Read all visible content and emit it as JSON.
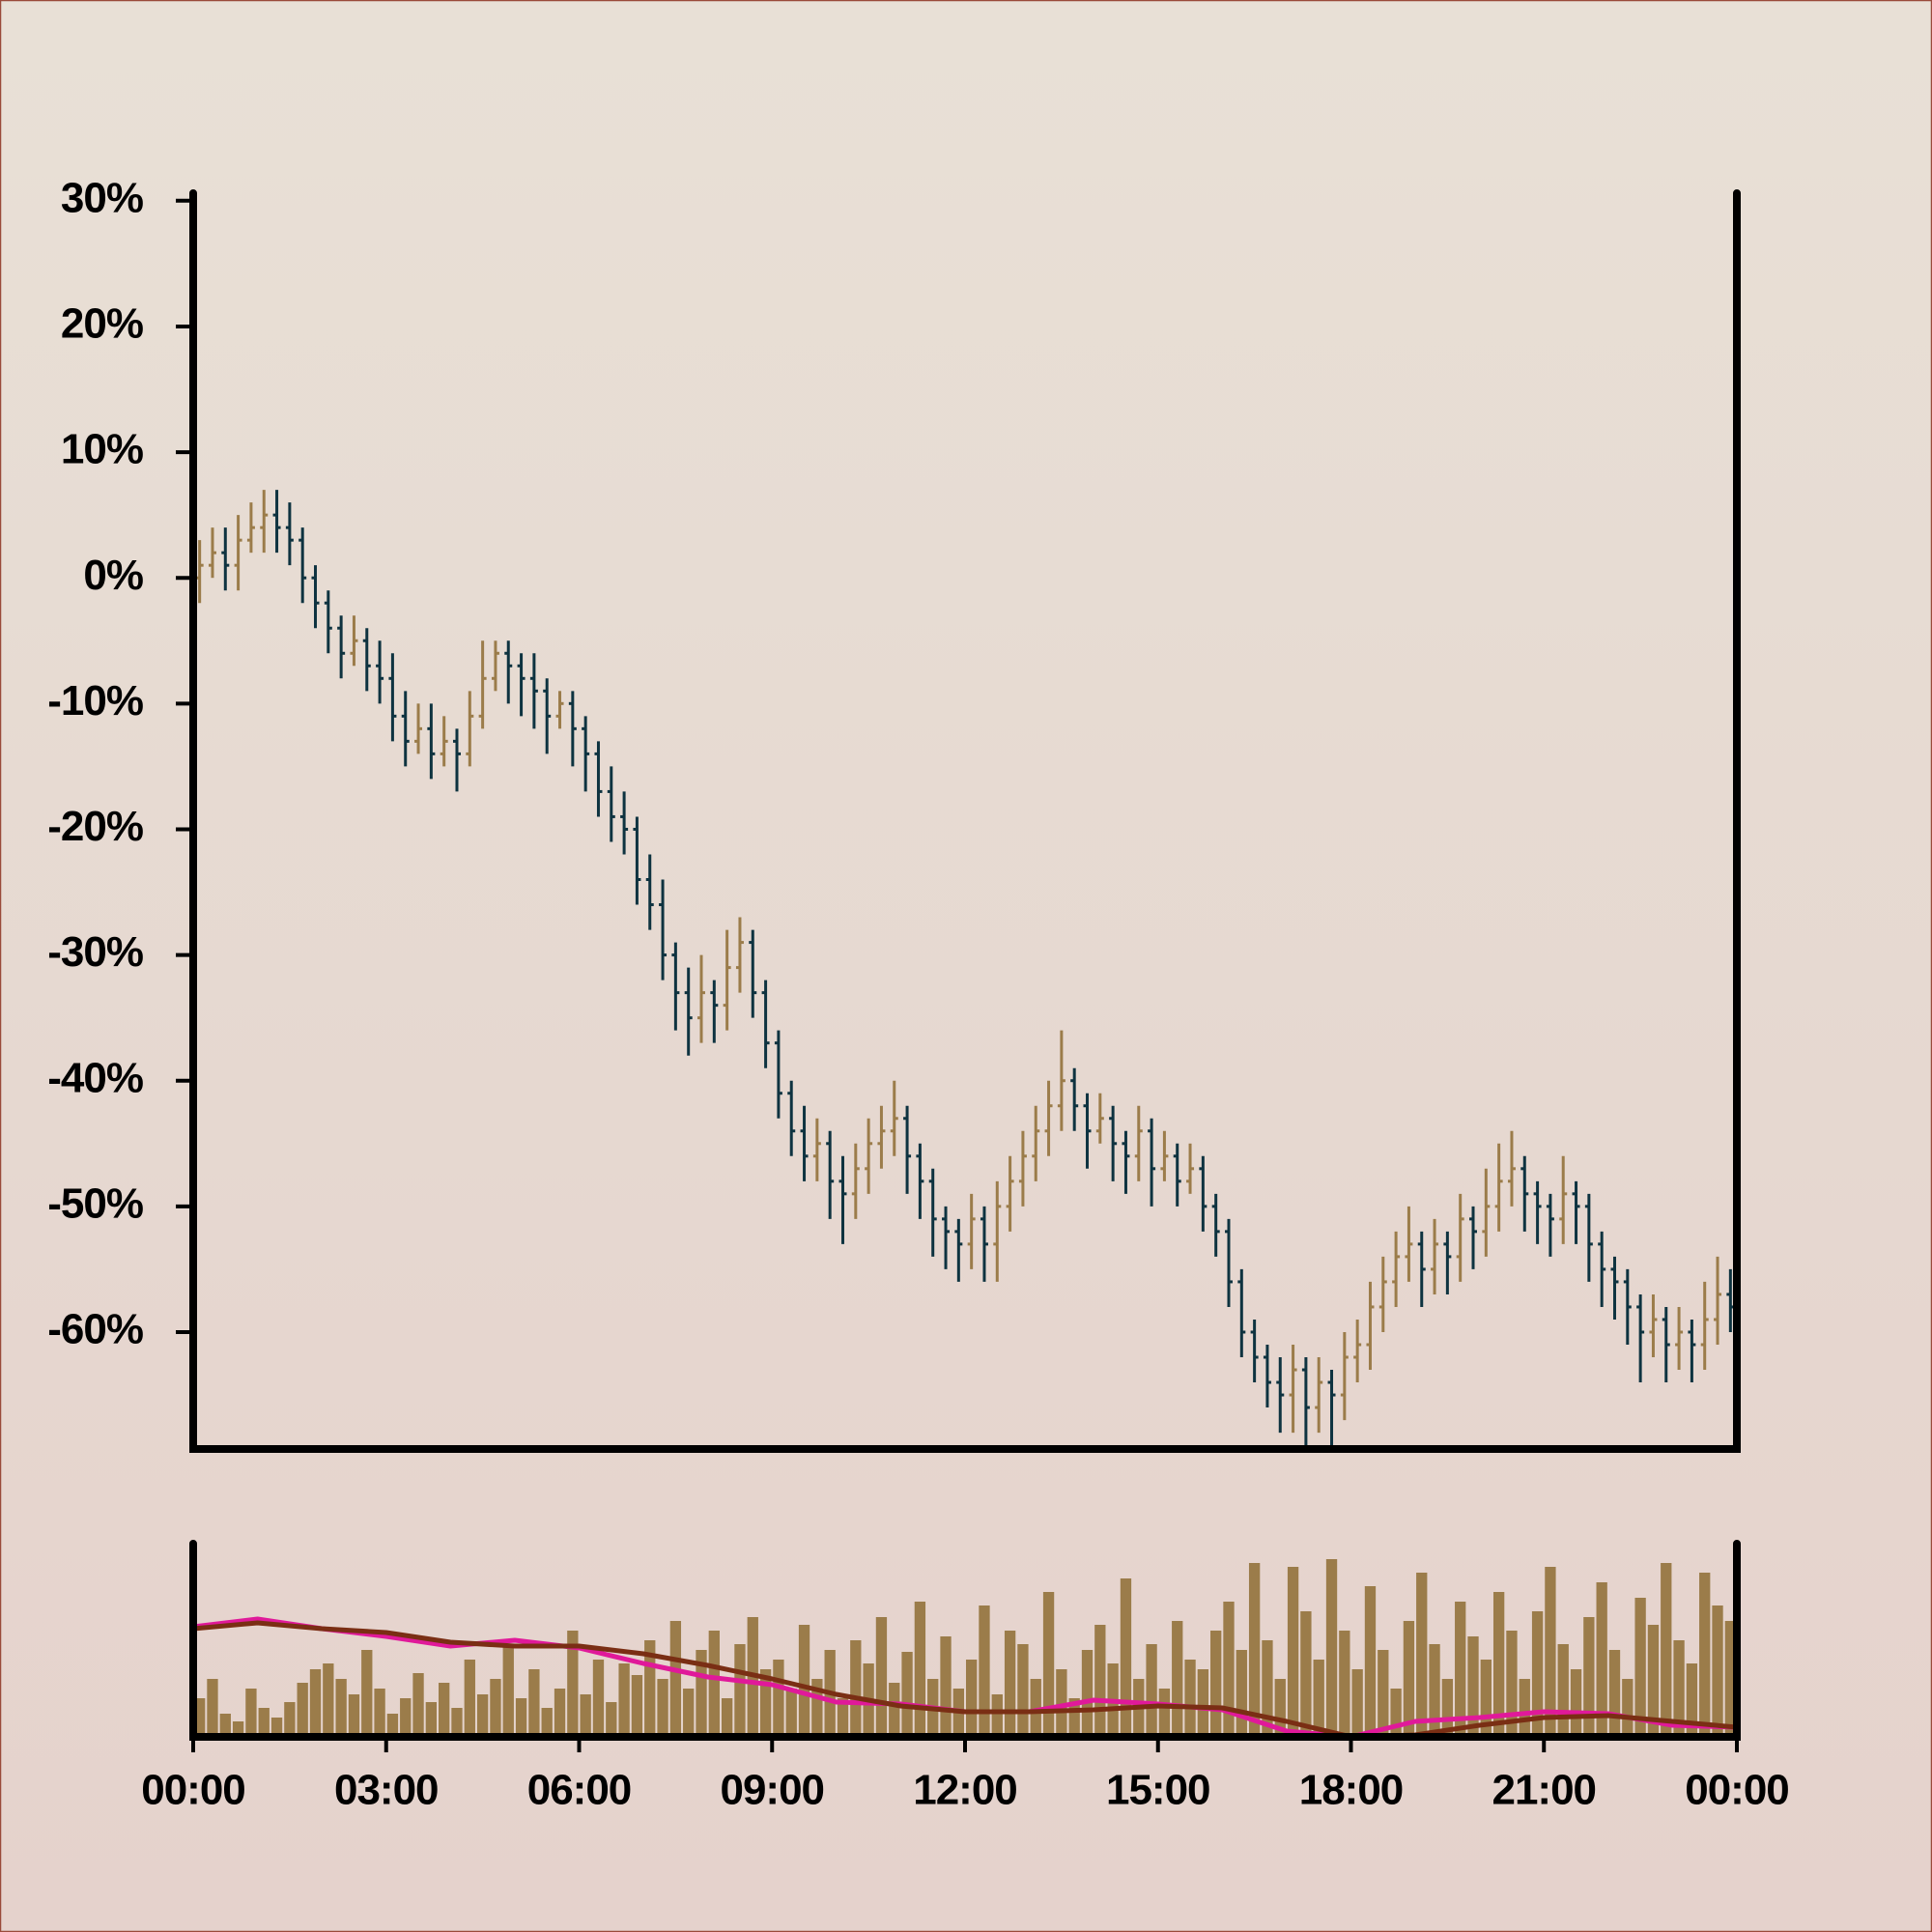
{
  "chart_data": {
    "type": "ohlc",
    "x": [
      0,
      0.2,
      0.4,
      0.6,
      0.8,
      1,
      1.2,
      1.4,
      1.6,
      1.8,
      2,
      2.2,
      2.4,
      2.6,
      2.8,
      3,
      3.2,
      3.4,
      3.6,
      3.8,
      4,
      4.2,
      4.4,
      4.6,
      4.8,
      5,
      5.2,
      5.4,
      5.6,
      5.8,
      6,
      6.2,
      6.4,
      6.6,
      6.8,
      7,
      7.2,
      7.4,
      7.6,
      7.8,
      8,
      8.2,
      8.4,
      8.6,
      8.8,
      9,
      9.2,
      9.4,
      9.6,
      9.8,
      10,
      10.2,
      10.4,
      10.6,
      10.8,
      11,
      11.2,
      11.4,
      11.6,
      11.8,
      12,
      12.2,
      12.4,
      12.6,
      12.8,
      13,
      13.2,
      13.4,
      13.6,
      13.8,
      14,
      14.2,
      14.4,
      14.6,
      14.8,
      15,
      15.2,
      15.4,
      15.6,
      15.8,
      16,
      16.2,
      16.4,
      16.6,
      16.8,
      17,
      17.2,
      17.4,
      17.6,
      17.8,
      18,
      18.2,
      18.4,
      18.6,
      18.8,
      19,
      19.2,
      19.4,
      19.6,
      19.8,
      20,
      20.2,
      20.4,
      20.6,
      20.8,
      21,
      21.2,
      21.4,
      21.6,
      21.8,
      22,
      22.2,
      22.4,
      22.6,
      22.8,
      23,
      23.2,
      23.4,
      23.6,
      23.8
    ],
    "xlim": [
      0,
      24
    ],
    "xticks": [
      {
        "value": 0,
        "label": "00:00"
      },
      {
        "value": 3,
        "label": "03:00"
      },
      {
        "value": 6,
        "label": "06:00"
      },
      {
        "value": 9,
        "label": "09:00"
      },
      {
        "value": 12,
        "label": "12:00"
      },
      {
        "value": 15,
        "label": "15:00"
      },
      {
        "value": 18,
        "label": "18:00"
      },
      {
        "value": 21,
        "label": "21:00"
      },
      {
        "value": 24,
        "label": "00:00"
      }
    ],
    "ylim": [
      -69.3,
      30.6
    ],
    "yticks": [
      {
        "value": 30,
        "label": "30%"
      },
      {
        "value": 20,
        "label": "20%"
      },
      {
        "value": 10,
        "label": "10%"
      },
      {
        "value": 0,
        "label": "0%"
      },
      {
        "value": -10,
        "label": "-10%"
      },
      {
        "value": -20,
        "label": "-20%"
      },
      {
        "value": -30,
        "label": "-30%"
      },
      {
        "value": -40,
        "label": "-40%"
      },
      {
        "value": -50,
        "label": "-50%"
      },
      {
        "value": -60,
        "label": "-60%"
      }
    ],
    "ohlc": [
      [
        0,
        3,
        -2,
        1
      ],
      [
        1,
        4,
        0,
        2
      ],
      [
        2,
        4,
        -1,
        1
      ],
      [
        1,
        5,
        -1,
        3
      ],
      [
        3,
        6,
        2,
        4
      ],
      [
        4,
        7,
        2,
        5
      ],
      [
        5,
        7,
        2,
        4
      ],
      [
        4,
        6,
        1,
        3
      ],
      [
        3,
        4,
        -2,
        0
      ],
      [
        0,
        1,
        -4,
        -2
      ],
      [
        -2,
        -1,
        -6,
        -4
      ],
      [
        -4,
        -3,
        -8,
        -6
      ],
      [
        -6,
        -3,
        -7,
        -5
      ],
      [
        -5,
        -4,
        -9,
        -7
      ],
      [
        -7,
        -5,
        -10,
        -8
      ],
      [
        -8,
        -6,
        -13,
        -11
      ],
      [
        -11,
        -9,
        -15,
        -13
      ],
      [
        -13,
        -10,
        -14,
        -12
      ],
      [
        -12,
        -10,
        -16,
        -14
      ],
      [
        -14,
        -11,
        -15,
        -13
      ],
      [
        -13,
        -12,
        -17,
        -14
      ],
      [
        -14,
        -9,
        -15,
        -11
      ],
      [
        -11,
        -5,
        -12,
        -8
      ],
      [
        -8,
        -5,
        -9,
        -6
      ],
      [
        -6,
        -5,
        -10,
        -7
      ],
      [
        -7,
        -6,
        -11,
        -8
      ],
      [
        -8,
        -6,
        -12,
        -9
      ],
      [
        -9,
        -8,
        -14,
        -11
      ],
      [
        -11,
        -9,
        -12,
        -10
      ],
      [
        -10,
        -9,
        -15,
        -12
      ],
      [
        -12,
        -11,
        -17,
        -14
      ],
      [
        -14,
        -13,
        -19,
        -17
      ],
      [
        -17,
        -15,
        -21,
        -19
      ],
      [
        -19,
        -17,
        -22,
        -20
      ],
      [
        -20,
        -19,
        -26,
        -24
      ],
      [
        -24,
        -22,
        -28,
        -26
      ],
      [
        -26,
        -24,
        -32,
        -30
      ],
      [
        -30,
        -29,
        -36,
        -33
      ],
      [
        -33,
        -31,
        -38,
        -35
      ],
      [
        -35,
        -30,
        -37,
        -33
      ],
      [
        -33,
        -32,
        -37,
        -34
      ],
      [
        -34,
        -28,
        -36,
        -31
      ],
      [
        -31,
        -27,
        -33,
        -29
      ],
      [
        -29,
        -28,
        -35,
        -33
      ],
      [
        -33,
        -32,
        -39,
        -37
      ],
      [
        -37,
        -36,
        -43,
        -41
      ],
      [
        -41,
        -40,
        -46,
        -44
      ],
      [
        -44,
        -42,
        -48,
        -46
      ],
      [
        -46,
        -43,
        -48,
        -45
      ],
      [
        -45,
        -44,
        -51,
        -48
      ],
      [
        -48,
        -46,
        -53,
        -49
      ],
      [
        -49,
        -45,
        -51,
        -47
      ],
      [
        -47,
        -43,
        -49,
        -45
      ],
      [
        -45,
        -42,
        -47,
        -44
      ],
      [
        -44,
        -40,
        -46,
        -43
      ],
      [
        -43,
        -42,
        -49,
        -46
      ],
      [
        -46,
        -45,
        -51,
        -48
      ],
      [
        -48,
        -47,
        -54,
        -51
      ],
      [
        -51,
        -50,
        -55,
        -52
      ],
      [
        -52,
        -51,
        -56,
        -53
      ],
      [
        -53,
        -49,
        -55,
        -51
      ],
      [
        -51,
        -50,
        -56,
        -53
      ],
      [
        -53,
        -48,
        -56,
        -50
      ],
      [
        -50,
        -46,
        -52,
        -48
      ],
      [
        -48,
        -44,
        -50,
        -46
      ],
      [
        -46,
        -42,
        -48,
        -44
      ],
      [
        -44,
        -40,
        -46,
        -42
      ],
      [
        -42,
        -36,
        -44,
        -40
      ],
      [
        -40,
        -39,
        -44,
        -42
      ],
      [
        -42,
        -41,
        -47,
        -44
      ],
      [
        -44,
        -41,
        -45,
        -43
      ],
      [
        -43,
        -42,
        -48,
        -45
      ],
      [
        -45,
        -44,
        -49,
        -46
      ],
      [
        -46,
        -42,
        -48,
        -44
      ],
      [
        -44,
        -43,
        -50,
        -47
      ],
      [
        -47,
        -44,
        -48,
        -46
      ],
      [
        -46,
        -45,
        -50,
        -48
      ],
      [
        -48,
        -45,
        -49,
        -47
      ],
      [
        -47,
        -46,
        -52,
        -50
      ],
      [
        -50,
        -49,
        -54,
        -52
      ],
      [
        -52,
        -51,
        -58,
        -56
      ],
      [
        -56,
        -55,
        -62,
        -60
      ],
      [
        -60,
        -59,
        -64,
        -62
      ],
      [
        -62,
        -61,
        -66,
        -64
      ],
      [
        -64,
        -62,
        -68,
        -65
      ],
      [
        -65,
        -61,
        -68,
        -63
      ],
      [
        -63,
        -62,
        -69,
        -66
      ],
      [
        -66,
        -62,
        -68,
        -64
      ],
      [
        -64,
        -63,
        -69,
        -65
      ],
      [
        -65,
        -60,
        -67,
        -62
      ],
      [
        -62,
        -59,
        -64,
        -61
      ],
      [
        -61,
        -56,
        -63,
        -58
      ],
      [
        -58,
        -54,
        -60,
        -56
      ],
      [
        -56,
        -52,
        -58,
        -54
      ],
      [
        -54,
        -50,
        -56,
        -53
      ],
      [
        -53,
        -52,
        -58,
        -55
      ],
      [
        -55,
        -51,
        -57,
        -53
      ],
      [
        -53,
        -52,
        -57,
        -54
      ],
      [
        -54,
        -49,
        -56,
        -51
      ],
      [
        -51,
        -50,
        -55,
        -52
      ],
      [
        -52,
        -47,
        -54,
        -50
      ],
      [
        -50,
        -45,
        -52,
        -48
      ],
      [
        -48,
        -44,
        -50,
        -47
      ],
      [
        -47,
        -46,
        -52,
        -49
      ],
      [
        -49,
        -48,
        -53,
        -50
      ],
      [
        -50,
        -49,
        -54,
        -51
      ],
      [
        -51,
        -46,
        -53,
        -49
      ],
      [
        -49,
        -48,
        -53,
        -50
      ],
      [
        -50,
        -49,
        -56,
        -53
      ],
      [
        -53,
        -52,
        -58,
        -55
      ],
      [
        -55,
        -54,
        -59,
        -56
      ],
      [
        -56,
        -55,
        -61,
        -58
      ],
      [
        -58,
        -57,
        -64,
        -60
      ],
      [
        -60,
        -57,
        -62,
        -59
      ],
      [
        -59,
        -58,
        -64,
        -61
      ],
      [
        -61,
        -58,
        -63,
        -60
      ],
      [
        -60,
        -59,
        -64,
        -61
      ],
      [
        -61,
        -56,
        -63,
        -59
      ],
      [
        -59,
        -54,
        -61,
        -57
      ],
      [
        -57,
        -55,
        -60,
        -58
      ]
    ],
    "up_color": "#9b7c4a",
    "down_color": "#0e3340",
    "volume": [
      20,
      30,
      12,
      8,
      25,
      15,
      10,
      18,
      28,
      35,
      38,
      30,
      22,
      45,
      25,
      12,
      20,
      33,
      18,
      28,
      15,
      40,
      22,
      30,
      48,
      20,
      35,
      15,
      25,
      55,
      22,
      40,
      18,
      38,
      32,
      50,
      30,
      60,
      25,
      45,
      55,
      20,
      48,
      62,
      35,
      40,
      25,
      58,
      30,
      45,
      20,
      50,
      38,
      62,
      28,
      44,
      70,
      30,
      52,
      25,
      40,
      68,
      22,
      55,
      48,
      30,
      75,
      35,
      20,
      45,
      58,
      38,
      82,
      30,
      48,
      25,
      60,
      40,
      35,
      55,
      70,
      45,
      90,
      50,
      30,
      88,
      65,
      40,
      92,
      55,
      35,
      78,
      45,
      25,
      60,
      85,
      48,
      30,
      70,
      52,
      40,
      75,
      55,
      30,
      65,
      88,
      48,
      35,
      62,
      80,
      45,
      30,
      72,
      58,
      90,
      50,
      38,
      85,
      68,
      60
    ],
    "volume_color": "#9b7c4a",
    "volume_lim": [
      0,
      100
    ],
    "ma_x": [
      0,
      1,
      2,
      3,
      4,
      5,
      6,
      7,
      8,
      9,
      10,
      11,
      12,
      13,
      14,
      15,
      16,
      17,
      18,
      19,
      20,
      21,
      22,
      23,
      24
    ],
    "overlays": [
      {
        "color": "#e0199a",
        "values": [
          57,
          61,
          56,
          52,
          47,
          50,
          46,
          38,
          31,
          27,
          18,
          17,
          13,
          13,
          19,
          17,
          14,
          3,
          0,
          8,
          10,
          13,
          12,
          6,
          5
        ]
      },
      {
        "color": "#7a2e14",
        "values": [
          56,
          59,
          56,
          54,
          49,
          47,
          47,
          43,
          37,
          30,
          22,
          16,
          13,
          13,
          14,
          16,
          15,
          8,
          0,
          1,
          6,
          10,
          11,
          8,
          5
        ]
      }
    ]
  }
}
